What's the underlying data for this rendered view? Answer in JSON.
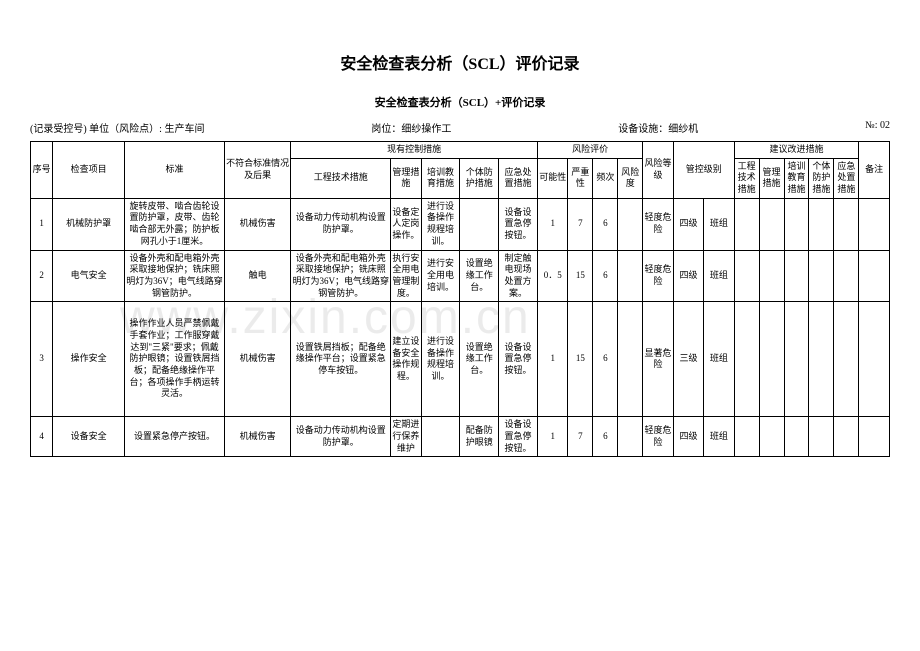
{
  "title": "安全检查表分析（SCL）评价记录",
  "subtitle": "安全检查表分析（SCL）+评价记录",
  "meta": {
    "unit_label": "(记录受控号) 单位（风险点）: 生产车间",
    "post_label": "岗位：细纱操作工",
    "equip_label": "设备设施：细纱机",
    "no_label": "№: 02"
  },
  "headers": {
    "seq": "序号",
    "item": "检查项目",
    "std": "标准",
    "fail": "不符合标准情况及后果",
    "current_group": "现有控制措施",
    "eng": "工程技术措施",
    "mgmt": "管理措施",
    "train": "培训教育措施",
    "ppe": "个体防护措施",
    "emerg": "应急处置措施",
    "eval_group": "风险评价",
    "prob": "可能性",
    "sev": "严重性",
    "freq": "频次",
    "risk": "风险度",
    "level": "风险等级",
    "ctrl": "管控级别",
    "suggest_group": "建议改进措施",
    "s1": "工程技术措施",
    "s2": "管理措施",
    "s3": "培训教育措施",
    "s4": "个体防护措施",
    "s5": "应急处置措施",
    "note": "备注"
  },
  "rows": [
    {
      "seq": "1",
      "item": "机械防护罩",
      "std": "旋转皮带、啮合齿轮设置防护罩，皮带、齿轮啮合部无外露；防护板网孔小于1厘米。",
      "fail": "机械伤害",
      "eng": "设备动力传动机构设置防护罩。",
      "mgmt": "设备定人定岗操作。",
      "train": "进行设备操作规程培训。",
      "ppe": "",
      "emerg": "设备设置急停按钮。",
      "prob": "1",
      "sev": "7",
      "freq": "6",
      "risk": "",
      "level": "轻度危险",
      "ctrl": "四级",
      "ctrl2": "班组",
      "s1": "",
      "s2": "",
      "s3": "",
      "s4": "",
      "s5": "",
      "note": ""
    },
    {
      "seq": "2",
      "item": "电气安全",
      "std": "设备外壳和配电箱外壳采取接地保护；铣床照明灯为36V；电气线路穿钢管防护。",
      "fail": "触电",
      "eng": "设备外壳和配电箱外壳采取接地保护；铣床照明灯为36V；电气线路穿钢管防护。",
      "mgmt": "执行安全用电管理制度。",
      "train": "进行安全用电培训。",
      "ppe": "设置绝缘工作台。",
      "emerg": "制定触电现场处置方案。",
      "prob": "0．5",
      "sev": "15",
      "freq": "6",
      "risk": "",
      "level": "轻度危险",
      "ctrl": "四级",
      "ctrl2": "班组",
      "s1": "",
      "s2": "",
      "s3": "",
      "s4": "",
      "s5": "",
      "note": ""
    },
    {
      "seq": "3",
      "item": "操作安全",
      "std": "操作作业人员严禁佩戴手套作业；工作服穿戴达到\"三紧\"要求；佩戴防护眼镜；设置铁屑挡板；配备绝缘操作平台；各项操作手柄运转灵活。",
      "fail": "机械伤害",
      "eng": "设置铁屑挡板；配备绝缘操作平台；设置紧急停车按钮。",
      "mgmt": "建立设备安全操作规程。",
      "train": "进行设备操作规程培训。",
      "ppe": "设置绝缘工作台。",
      "emerg": "设备设置急停按钮。",
      "prob": "1",
      "sev": "15",
      "freq": "6",
      "risk": "",
      "level": "显著危险",
      "ctrl": "三级",
      "ctrl2": "班组",
      "s1": "",
      "s2": "",
      "s3": "",
      "s4": "",
      "s5": "",
      "note": ""
    },
    {
      "seq": "4",
      "item": "设备安全",
      "std": "设置紧急停产按钮。",
      "fail": "机械伤害",
      "eng": "设备动力传动机构设置防护罩。",
      "mgmt": "定期进行保养维护",
      "train": "",
      "ppe": "配备防护眼镜",
      "emerg": "设备设置急停按钮。",
      "prob": "1",
      "sev": "7",
      "freq": "6",
      "risk": "",
      "level": "轻度危险",
      "ctrl": "四级",
      "ctrl2": "班组",
      "s1": "",
      "s2": "",
      "s3": "",
      "s4": "",
      "s5": "",
      "note": ""
    }
  ],
  "watermark": "www.zixin.com.cn"
}
